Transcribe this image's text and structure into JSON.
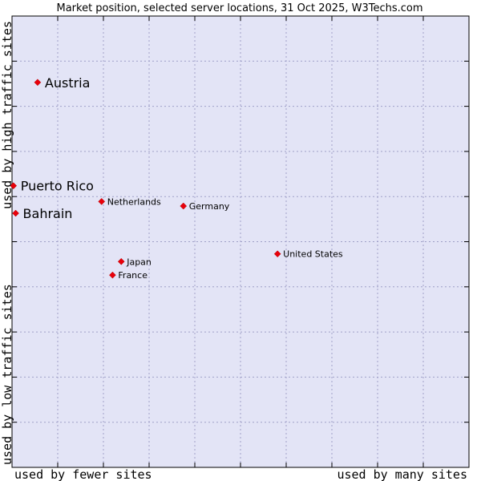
{
  "chart_data": {
    "type": "scatter",
    "title": "Market position, selected server locations, 31 Oct 2025, W3Techs.com",
    "xlabel_left": "used by fewer sites",
    "xlabel_right": "used by many sites",
    "ylabel_top": "used by high traffic sites",
    "ylabel_bottom": "used by low traffic sites",
    "xlim": [
      0,
      10
    ],
    "ylim": [
      0,
      10
    ],
    "grid": true,
    "colors": {
      "plot_bg": "#e3e4f6",
      "grid": "#a0a0c8",
      "marker": "#e8000b",
      "border": "#000000"
    },
    "points": [
      {
        "label": "Austria",
        "x": 0.56,
        "y": 8.53,
        "highlight": true
      },
      {
        "label": "Puerto Rico",
        "x": 0.03,
        "y": 6.24,
        "highlight": true
      },
      {
        "label": "Bahrain",
        "x": 0.08,
        "y": 5.63,
        "highlight": true
      },
      {
        "label": "Netherlands",
        "x": 1.96,
        "y": 5.89,
        "highlight": false
      },
      {
        "label": "Germany",
        "x": 3.75,
        "y": 5.79,
        "highlight": false
      },
      {
        "label": "United States",
        "x": 5.81,
        "y": 4.73,
        "highlight": false
      },
      {
        "label": "Japan",
        "x": 2.39,
        "y": 4.56,
        "highlight": false
      },
      {
        "label": "France",
        "x": 2.2,
        "y": 4.26,
        "highlight": false
      }
    ]
  }
}
